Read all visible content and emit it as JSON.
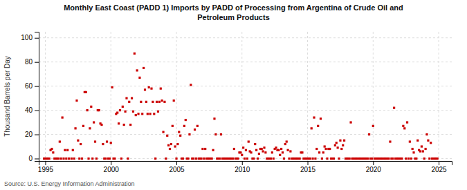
{
  "chart_data": {
    "type": "scatter",
    "title": "Monthly East Coast (PADD 1) Imports by PADD of Processing from Argentina of Crude Oil and\nPetroleum Products",
    "ylabel": "Thousand Barrels per Day",
    "annotations": [
      "Source: U.S. Energy Information Administration"
    ],
    "color": "#cc0000",
    "marker": "square",
    "grid": true,
    "xlim": [
      1994.5,
      2026.0
    ],
    "ylim": [
      -2,
      105
    ],
    "xticks": [
      1995,
      2000,
      2005,
      2010,
      2015,
      2020,
      2025
    ],
    "yticks": [
      0,
      20,
      40,
      60,
      80,
      100
    ],
    "x": [
      1994.9,
      1995.0,
      1995.1,
      1995.2,
      1995.3,
      1995.4,
      1995.5,
      1995.6,
      1995.7,
      1995.8,
      1995.9,
      1996.0,
      1996.1,
      1996.2,
      1996.3,
      1996.4,
      1996.5,
      1996.6,
      1996.7,
      1996.8,
      1997.0,
      1997.1,
      1997.2,
      1997.3,
      1997.4,
      1997.5,
      1997.6,
      1997.7,
      1997.8,
      1997.9,
      1998.0,
      1998.1,
      1998.2,
      1998.3,
      1998.4,
      1998.5,
      1998.6,
      1998.7,
      1998.8,
      1998.9,
      1999.0,
      1999.1,
      1999.2,
      1999.3,
      1999.4,
      1999.5,
      1999.6,
      1999.7,
      1999.8,
      1999.9,
      2000.0,
      2000.1,
      2000.2,
      2000.3,
      2000.4,
      2000.5,
      2000.6,
      2000.7,
      2000.8,
      2000.9,
      2001.0,
      2001.1,
      2001.2,
      2001.3,
      2001.4,
      2001.5,
      2001.6,
      2001.7,
      2001.8,
      2001.9,
      2002.0,
      2002.1,
      2002.2,
      2002.3,
      2002.4,
      2002.5,
      2002.6,
      2002.7,
      2002.8,
      2002.9,
      2003.0,
      2003.1,
      2003.2,
      2003.3,
      2003.4,
      2003.5,
      2003.6,
      2003.7,
      2003.8,
      2003.9,
      2004.0,
      2004.1,
      2004.2,
      2004.3,
      2004.4,
      2004.5,
      2004.6,
      2004.7,
      2004.8,
      2004.9,
      2005.0,
      2005.1,
      2005.2,
      2005.3,
      2005.4,
      2005.5,
      2005.6,
      2005.7,
      2005.8,
      2005.9,
      2006.0,
      2006.1,
      2006.2,
      2006.3,
      2006.4,
      2006.5,
      2006.6,
      2006.7,
      2006.8,
      2006.9,
      2007.0,
      2007.1,
      2007.2,
      2007.3,
      2007.4,
      2007.5,
      2007.6,
      2007.7,
      2007.8,
      2007.9,
      2008.0,
      2008.1,
      2008.2,
      2008.3,
      2008.4,
      2008.5,
      2008.6,
      2008.7,
      2008.8,
      2008.9,
      2009.0,
      2009.1,
      2009.2,
      2009.3,
      2009.4,
      2009.5,
      2009.6,
      2009.7,
      2009.8,
      2009.9,
      2010.0,
      2010.1,
      2010.2,
      2010.3,
      2010.4,
      2010.5,
      2010.6,
      2010.7,
      2010.8,
      2010.9,
      2011.0,
      2011.1,
      2011.2,
      2011.3,
      2011.4,
      2011.5,
      2011.6,
      2011.7,
      2011.8,
      2011.9,
      2012.0,
      2012.1,
      2012.2,
      2012.3,
      2012.4,
      2012.5,
      2012.6,
      2012.7,
      2012.8,
      2012.9,
      2013.0,
      2013.1,
      2013.2,
      2013.3,
      2013.4,
      2013.5,
      2013.6,
      2013.7,
      2013.8,
      2013.9,
      2014.0,
      2014.1,
      2014.2,
      2014.3,
      2014.4,
      2014.5,
      2014.6,
      2014.7,
      2014.8,
      2014.9,
      2015.0,
      2015.1,
      2015.2,
      2015.3,
      2015.4,
      2015.5,
      2015.6,
      2015.7,
      2015.8,
      2015.9,
      2016.0,
      2016.1,
      2016.2,
      2016.3,
      2016.4,
      2016.5,
      2016.6,
      2016.7,
      2016.8,
      2016.9,
      2017.0,
      2017.1,
      2017.2,
      2017.3,
      2017.4,
      2017.5,
      2017.6,
      2017.7,
      2017.8,
      2017.9,
      2018.0,
      2018.1,
      2018.2,
      2018.3,
      2018.4,
      2018.5,
      2018.6,
      2018.7,
      2018.8,
      2018.9,
      2019.0,
      2019.1,
      2019.2,
      2019.3,
      2019.4,
      2019.5,
      2019.6,
      2019.7,
      2019.8,
      2019.9,
      2020.0,
      2020.1,
      2020.2,
      2020.3,
      2020.4,
      2020.5,
      2020.6,
      2020.7,
      2020.8,
      2020.9,
      2021.0,
      2021.1,
      2021.2,
      2021.3,
      2021.4,
      2021.5,
      2021.6,
      2021.7,
      2021.8,
      2021.9,
      2022.0,
      2022.1,
      2022.2,
      2022.3,
      2022.4,
      2022.5,
      2022.6,
      2022.7,
      2022.8,
      2022.9,
      2023.0,
      2023.1,
      2023.2,
      2023.3,
      2023.4,
      2023.5,
      2023.6,
      2023.7,
      2023.8,
      2023.9,
      2024.0,
      2024.1,
      2024.2,
      2024.3,
      2024.4,
      2024.5,
      2024.6,
      2024.7,
      2024.8,
      2024.9
    ],
    "values": [
      0,
      0,
      0,
      0,
      0,
      7,
      8,
      5,
      0,
      0,
      0,
      0,
      14,
      0,
      34,
      0,
      7,
      0,
      7,
      0,
      0,
      7,
      0,
      25,
      48,
      15,
      0,
      12,
      0,
      27,
      55,
      55,
      40,
      0,
      25,
      43,
      0,
      30,
      14,
      0,
      40,
      40,
      29,
      28,
      12,
      0,
      0,
      14,
      0,
      0,
      13,
      59,
      0,
      0,
      37,
      38,
      29,
      40,
      0,
      43,
      28,
      39,
      50,
      0,
      47,
      28,
      50,
      39,
      87,
      36,
      73,
      37,
      67,
      47,
      37,
      75,
      57,
      47,
      37,
      59,
      37,
      58,
      47,
      37,
      0,
      47,
      39,
      47,
      58,
      48,
      22,
      47,
      0,
      19,
      11,
      8,
      12,
      27,
      48,
      10,
      0,
      12,
      22,
      19,
      0,
      0,
      27,
      32,
      0,
      0,
      20,
      61,
      0,
      0,
      24,
      0,
      27,
      0,
      0,
      0,
      8,
      0,
      8,
      0,
      0,
      0,
      0,
      0,
      7,
      33,
      20,
      0,
      0,
      0,
      20,
      0,
      0,
      0,
      0,
      0,
      0,
      0,
      0,
      0,
      8,
      0,
      0,
      0,
      5,
      5,
      3,
      9,
      0,
      7,
      0,
      14,
      6,
      5,
      0,
      0,
      12,
      7,
      0,
      4,
      8,
      8,
      6,
      9,
      5,
      0,
      0,
      0,
      0,
      5,
      0,
      8,
      9,
      7,
      7,
      3,
      8,
      5,
      0,
      12,
      14,
      7,
      0,
      6,
      0,
      0,
      0,
      0,
      0,
      0,
      0,
      5,
      5,
      0,
      0,
      0,
      0,
      0,
      0,
      25,
      0,
      34,
      0,
      8,
      27,
      5,
      33,
      0,
      5,
      10,
      8,
      0,
      8,
      8,
      0,
      0,
      0,
      11,
      13,
      9,
      0,
      15,
      8,
      11,
      15,
      0,
      0,
      0,
      0,
      30,
      0,
      0,
      0,
      0,
      0,
      0,
      0,
      0,
      0,
      0,
      0,
      0,
      0,
      20,
      0,
      0,
      27,
      0,
      0,
      0,
      0,
      0,
      0,
      0,
      0,
      0,
      0,
      0,
      0,
      14,
      0,
      0,
      42,
      0,
      0,
      0,
      0,
      0,
      0,
      27,
      25,
      0,
      30,
      0,
      14,
      0,
      8,
      5,
      0,
      0,
      15,
      7,
      6,
      10,
      6,
      0,
      8,
      20,
      15,
      0,
      13,
      0,
      0,
      0,
      0,
      0
    ]
  }
}
